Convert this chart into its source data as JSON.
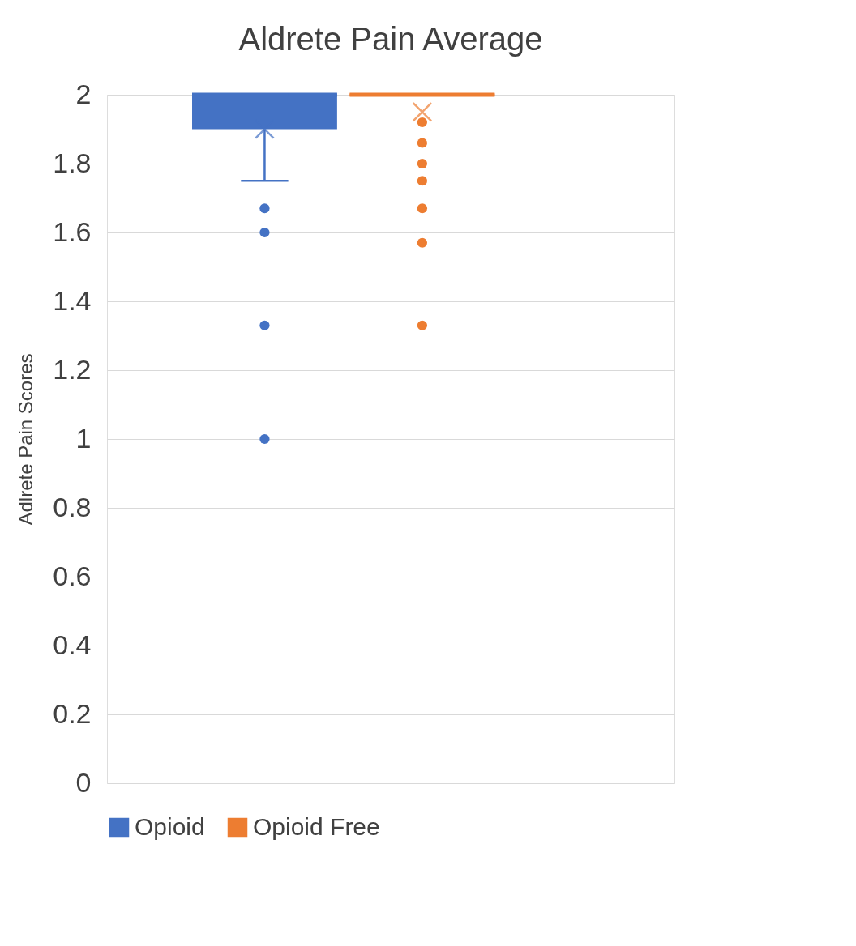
{
  "chart_data": {
    "type": "box",
    "title": "Aldrete Pain Average",
    "ylabel": "Adlrete Pain Scores",
    "categories": [
      null
    ],
    "series": [
      {
        "name": "Opioid",
        "color": "#4472c4",
        "boxes": [
          {
            "low": 1.75,
            "q1": 1.9,
            "median": 2,
            "q3": 2,
            "high": 2,
            "mean": 1.9,
            "outliers": [
              1.67,
              1.6,
              1.33,
              1.0
            ]
          }
        ]
      },
      {
        "name": "Opioid Free",
        "color": "#ed7d31",
        "boxes": [
          {
            "low": 2,
            "q1": 2,
            "median": 2,
            "q3": 2,
            "high": 2,
            "mean": 1.95,
            "outliers": [
              1.92,
              1.86,
              1.8,
              1.75,
              1.67,
              1.57,
              1.33
            ]
          }
        ]
      }
    ],
    "ylim": [
      0,
      2
    ],
    "yticks": [
      0,
      0.2,
      0.4,
      0.6,
      0.8,
      1,
      1.2,
      1.4,
      1.6,
      1.8,
      2
    ],
    "grid": "y",
    "legend": "bottom"
  }
}
